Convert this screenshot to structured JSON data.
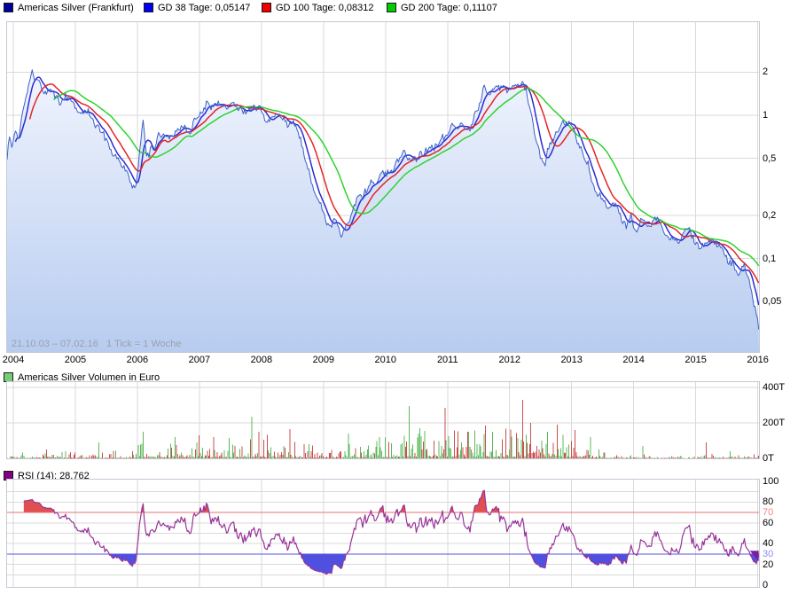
{
  "header": {
    "instrument": {
      "label": "Americas Silver (Frankfurt)",
      "swatch": "#000099"
    },
    "ma": [
      {
        "label": "GD 38 Tage: 0,05147",
        "swatch": "#0000EE"
      },
      {
        "label": "GD 100 Tage: 0,08312",
        "swatch": "#EE0000"
      },
      {
        "label": "GD 200 Tage: 0,11107",
        "swatch": "#00CC00"
      }
    ]
  },
  "main": {
    "watermark": "21.10.03 – 07.02.16   1 Tick = 1 Woche"
  },
  "volume": {
    "title": "Americas Silver Volumen in Euro",
    "swatch": "#77CC77"
  },
  "rsi": {
    "title": "RSI (14): 28,762",
    "swatch": "#800080"
  },
  "chart_data": [
    {
      "type": "line",
      "title": "Americas Silver (Frankfurt), weekly close, EUR, log scale",
      "period_label": "21.10.03 – 07.02.16",
      "tick_label": "1 Tick = 1 Woche",
      "x_range": [
        2003.9,
        2016.02
      ],
      "x_ticks": [
        2004,
        2005,
        2006,
        2007,
        2008,
        2009,
        2010,
        2011,
        2012,
        2013,
        2014,
        2015,
        2016
      ],
      "y_scale": "log",
      "y_ticks": [
        {
          "v": 2,
          "label": "2"
        },
        {
          "v": 1,
          "label": "1"
        },
        {
          "v": 0.5,
          "label": "0,5"
        },
        {
          "v": 0.2,
          "label": "0,2"
        },
        {
          "v": 0.1,
          "label": "0,1"
        },
        {
          "v": 0.05,
          "label": "0,05"
        }
      ],
      "series": [
        {
          "name": "Americas Silver (Frankfurt)",
          "color": "#3A5FC8",
          "fill_top": "#F0F4FD",
          "fill_bottom": "#B7CCF0",
          "anchors": [
            [
              2003.9,
              0.52
            ],
            [
              2003.94,
              0.72
            ],
            [
              2003.98,
              0.58
            ],
            [
              2004.03,
              0.8
            ],
            [
              2004.08,
              0.68
            ],
            [
              2004.13,
              0.95
            ],
            [
              2004.18,
              1.25
            ],
            [
              2004.24,
              1.7
            ],
            [
              2004.3,
              2.25
            ],
            [
              2004.36,
              1.7
            ],
            [
              2004.42,
              1.9
            ],
            [
              2004.5,
              1.45
            ],
            [
              2004.58,
              1.62
            ],
            [
              2004.66,
              1.32
            ],
            [
              2004.76,
              1.18
            ],
            [
              2004.86,
              1.38
            ],
            [
              2004.96,
              1.25
            ],
            [
              2005.06,
              1.0
            ],
            [
              2005.2,
              1.06
            ],
            [
              2005.35,
              0.85
            ],
            [
              2005.5,
              0.65
            ],
            [
              2005.65,
              0.5
            ],
            [
              2005.8,
              0.42
            ],
            [
              2005.9,
              0.33
            ],
            [
              2005.97,
              0.29
            ],
            [
              2006.04,
              0.55
            ],
            [
              2006.09,
              0.88
            ],
            [
              2006.15,
              0.52
            ],
            [
              2006.25,
              0.6
            ],
            [
              2006.4,
              0.78
            ],
            [
              2006.55,
              0.72
            ],
            [
              2006.7,
              0.85
            ],
            [
              2006.82,
              0.8
            ],
            [
              2006.92,
              0.9
            ],
            [
              2007.02,
              1.05
            ],
            [
              2007.12,
              1.2
            ],
            [
              2007.22,
              1.14
            ],
            [
              2007.32,
              1.25
            ],
            [
              2007.42,
              1.15
            ],
            [
              2007.52,
              1.2
            ],
            [
              2007.65,
              1.1
            ],
            [
              2007.78,
              1.04
            ],
            [
              2007.9,
              1.14
            ],
            [
              2008.02,
              1.04
            ],
            [
              2008.12,
              0.95
            ],
            [
              2008.22,
              1.0
            ],
            [
              2008.35,
              0.9
            ],
            [
              2008.5,
              0.84
            ],
            [
              2008.6,
              0.78
            ],
            [
              2008.7,
              0.52
            ],
            [
              2008.8,
              0.35
            ],
            [
              2008.9,
              0.26
            ],
            [
              2009.0,
              0.2
            ],
            [
              2009.07,
              0.165
            ],
            [
              2009.13,
              0.155
            ],
            [
              2009.2,
              0.19
            ],
            [
              2009.3,
              0.148
            ],
            [
              2009.4,
              0.19
            ],
            [
              2009.5,
              0.24
            ],
            [
              2009.62,
              0.28
            ],
            [
              2009.75,
              0.31
            ],
            [
              2009.88,
              0.36
            ],
            [
              2010.0,
              0.42
            ],
            [
              2010.1,
              0.4
            ],
            [
              2010.2,
              0.46
            ],
            [
              2010.3,
              0.52
            ],
            [
              2010.4,
              0.46
            ],
            [
              2010.52,
              0.52
            ],
            [
              2010.64,
              0.57
            ],
            [
              2010.76,
              0.6
            ],
            [
              2010.88,
              0.64
            ],
            [
              2011.0,
              0.7
            ],
            [
              2011.1,
              0.78
            ],
            [
              2011.2,
              0.85
            ],
            [
              2011.3,
              0.8
            ],
            [
              2011.4,
              0.95
            ],
            [
              2011.5,
              1.2
            ],
            [
              2011.58,
              1.55
            ],
            [
              2011.66,
              1.35
            ],
            [
              2011.74,
              1.55
            ],
            [
              2011.82,
              1.45
            ],
            [
              2011.92,
              1.58
            ],
            [
              2012.02,
              1.52
            ],
            [
              2012.1,
              1.62
            ],
            [
              2012.18,
              1.68
            ],
            [
              2012.26,
              1.48
            ],
            [
              2012.34,
              1.0
            ],
            [
              2012.42,
              0.7
            ],
            [
              2012.5,
              0.52
            ],
            [
              2012.57,
              0.46
            ],
            [
              2012.66,
              0.62
            ],
            [
              2012.76,
              0.78
            ],
            [
              2012.84,
              0.87
            ],
            [
              2012.92,
              0.82
            ],
            [
              2013.0,
              0.88
            ],
            [
              2013.08,
              0.72
            ],
            [
              2013.18,
              0.58
            ],
            [
              2013.28,
              0.46
            ],
            [
              2013.38,
              0.32
            ],
            [
              2013.48,
              0.27
            ],
            [
              2013.58,
              0.22
            ],
            [
              2013.68,
              0.26
            ],
            [
              2013.78,
              0.2
            ],
            [
              2013.88,
              0.165
            ],
            [
              2013.96,
              0.2
            ],
            [
              2014.06,
              0.155
            ],
            [
              2014.16,
              0.19
            ],
            [
              2014.26,
              0.165
            ],
            [
              2014.36,
              0.2
            ],
            [
              2014.48,
              0.158
            ],
            [
              2014.6,
              0.148
            ],
            [
              2014.72,
              0.132
            ],
            [
              2014.84,
              0.148
            ],
            [
              2014.96,
              0.138
            ],
            [
              2015.08,
              0.124
            ],
            [
              2015.2,
              0.139
            ],
            [
              2015.34,
              0.12
            ],
            [
              2015.48,
              0.105
            ],
            [
              2015.6,
              0.088
            ],
            [
              2015.7,
              0.076
            ],
            [
              2015.78,
              0.086
            ],
            [
              2015.86,
              0.068
            ],
            [
              2015.92,
              0.052
            ],
            [
              2015.97,
              0.042
            ],
            [
              2016.0,
              0.036
            ],
            [
              2016.02,
              0.033
            ]
          ]
        },
        {
          "name": "GD 38 Tage",
          "last": 0.05147,
          "sma_weeks": 8,
          "color": "#2B2BD5"
        },
        {
          "name": "GD 100 Tage",
          "last": 0.08312,
          "sma_weeks": 20,
          "color": "#E42525"
        },
        {
          "name": "GD 200 Tage",
          "last": 0.11107,
          "sma_weeks": 40,
          "color": "#2ED32E"
        }
      ]
    },
    {
      "type": "bar",
      "title": "Americas Silver Volumen in Euro",
      "unit": "T (Tausend Euro)",
      "ylim_thousands": [
        0,
        400
      ],
      "y_ticks": [
        {
          "v": 400,
          "label": "400T"
        },
        {
          "v": 200,
          "label": "200T"
        },
        {
          "v": 0,
          "label": "0T"
        }
      ],
      "grid_values": [
        200,
        400
      ],
      "up_color": "#5CB85C",
      "down_color": "#C9504E",
      "envelope_anchors": [
        [
          2003.9,
          6
        ],
        [
          2004.2,
          18
        ],
        [
          2004.5,
          30
        ],
        [
          2004.8,
          22
        ],
        [
          2005.1,
          15
        ],
        [
          2005.5,
          18
        ],
        [
          2005.9,
          28
        ],
        [
          2006.1,
          55
        ],
        [
          2006.4,
          45
        ],
        [
          2006.7,
          55
        ],
        [
          2007.0,
          65
        ],
        [
          2007.3,
          60
        ],
        [
          2007.6,
          55
        ],
        [
          2007.9,
          70
        ],
        [
          2008.2,
          60
        ],
        [
          2008.5,
          55
        ],
        [
          2008.8,
          40
        ],
        [
          2009.1,
          35
        ],
        [
          2009.4,
          55
        ],
        [
          2009.7,
          45
        ],
        [
          2010.0,
          60
        ],
        [
          2010.3,
          85
        ],
        [
          2010.6,
          75
        ],
        [
          2010.9,
          85
        ],
        [
          2011.2,
          75
        ],
        [
          2011.5,
          80
        ],
        [
          2011.8,
          70
        ],
        [
          2012.0,
          85
        ],
        [
          2012.3,
          95
        ],
        [
          2012.6,
          75
        ],
        [
          2012.9,
          70
        ],
        [
          2013.1,
          65
        ],
        [
          2013.3,
          45
        ],
        [
          2013.6,
          18
        ],
        [
          2014.0,
          12
        ],
        [
          2014.5,
          10
        ],
        [
          2015.0,
          8
        ],
        [
          2015.3,
          12
        ],
        [
          2015.6,
          10
        ],
        [
          2015.9,
          14
        ],
        [
          2016.02,
          18
        ]
      ],
      "spikes": [
        [
          2005.38,
          90,
          "up"
        ],
        [
          2006.1,
          150,
          "up"
        ],
        [
          2006.62,
          120,
          "up"
        ],
        [
          2007.0,
          130,
          "down"
        ],
        [
          2007.48,
          115,
          "up"
        ],
        [
          2007.85,
          235,
          "up"
        ],
        [
          2007.95,
          150,
          "down"
        ],
        [
          2008.45,
          165,
          "down"
        ],
        [
          2009.4,
          140,
          "up"
        ],
        [
          2009.9,
          120,
          "up"
        ],
        [
          2010.38,
          295,
          "up"
        ],
        [
          2010.55,
          170,
          "up"
        ],
        [
          2010.95,
          285,
          "down"
        ],
        [
          2011.35,
          150,
          "up"
        ],
        [
          2011.62,
          185,
          "down"
        ],
        [
          2012.2,
          330,
          "down"
        ],
        [
          2012.35,
          200,
          "down"
        ],
        [
          2012.62,
          150,
          "up"
        ],
        [
          2012.76,
          190,
          "down"
        ],
        [
          2013.05,
          160,
          "down"
        ],
        [
          2013.3,
          120,
          "up"
        ],
        [
          2014.15,
          70,
          "up"
        ],
        [
          2015.16,
          90,
          "down"
        ],
        [
          2015.55,
          40,
          "up"
        ]
      ]
    },
    {
      "type": "line",
      "title": "RSI (14)",
      "window": 14,
      "last_value": 28.762,
      "ylim": [
        0,
        100
      ],
      "y_ticks": [
        {
          "v": 100,
          "label": "100"
        },
        {
          "v": 80,
          "label": "80"
        },
        {
          "v": 70,
          "label": "70",
          "color": "#F08484"
        },
        {
          "v": 60,
          "label": "60"
        },
        {
          "v": 40,
          "label": "40"
        },
        {
          "v": 30,
          "label": "30",
          "color": "#8C8CF0"
        },
        {
          "v": 20,
          "label": "20"
        },
        {
          "v": 0,
          "label": "0"
        }
      ],
      "grid_values": [
        10,
        20,
        40,
        50,
        60,
        80,
        90
      ],
      "overbought": 70,
      "oversold": 30,
      "line_color": "#993399",
      "overbought_line_color": "#E87272",
      "oversold_line_color": "#5656DC",
      "overbought_fill": "#E05050",
      "oversold_fill": "#5050E0",
      "marker_color": "#7A1FA0"
    }
  ]
}
